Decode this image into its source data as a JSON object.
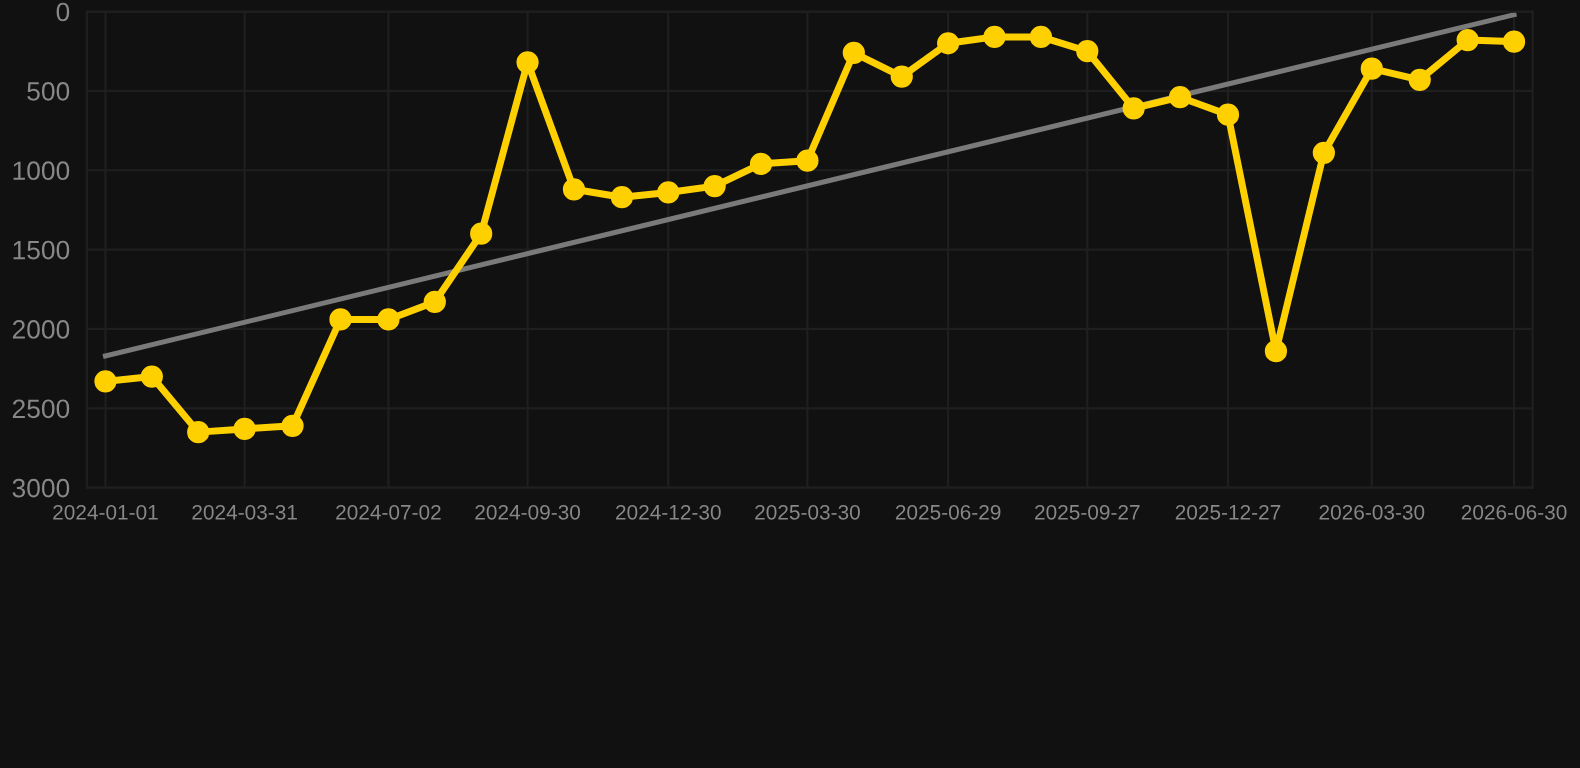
{
  "chart_data": {
    "type": "line",
    "x": [
      "2024-01-01",
      "2024-01-31",
      "2024-03-01",
      "2024-03-31",
      "2024-05-01",
      "2024-06-01",
      "2024-07-02",
      "2024-08-01",
      "2024-08-31",
      "2024-09-30",
      "2024-10-30",
      "2024-11-30",
      "2024-12-30",
      "2025-01-29",
      "2025-02-28",
      "2025-03-30",
      "2025-04-29",
      "2025-05-30",
      "2025-06-29",
      "2025-07-29",
      "2025-08-28",
      "2025-09-27",
      "2025-10-27",
      "2025-11-26",
      "2025-12-27",
      "2026-01-27",
      "2026-02-27",
      "2026-03-30",
      "2026-04-30",
      "2026-05-31",
      "2026-06-30"
    ],
    "series": [
      {
        "color": "#ffd000",
        "marker": "circle",
        "values": [
          2330,
          2300,
          2650,
          2630,
          2610,
          1940,
          1940,
          1830,
          1400,
          320,
          1120,
          1170,
          1140,
          1100,
          960,
          940,
          260,
          410,
          200,
          160,
          160,
          250,
          610,
          540,
          650,
          2140,
          890,
          360,
          430,
          180,
          190
        ]
      },
      {
        "type": "line",
        "color": "#7a7a7a",
        "marker": "none",
        "x": [
          "2024-01-01",
          "2026-06-30"
        ],
        "values": [
          2170,
          20
        ]
      }
    ],
    "xlim": [
      "2023-12-20",
      "2026-07-12"
    ],
    "xticks": [
      "2024-01-01",
      "2024-03-31",
      "2024-07-02",
      "2024-09-30",
      "2024-12-30",
      "2025-03-30",
      "2025-06-29",
      "2025-09-27",
      "2025-12-27",
      "2026-03-30",
      "2026-06-30"
    ],
    "ylim": [
      3000,
      0
    ],
    "yticks": [
      0,
      500,
      1000,
      1500,
      2000,
      2500,
      3000
    ],
    "grid": true,
    "line_style": "solid"
  }
}
